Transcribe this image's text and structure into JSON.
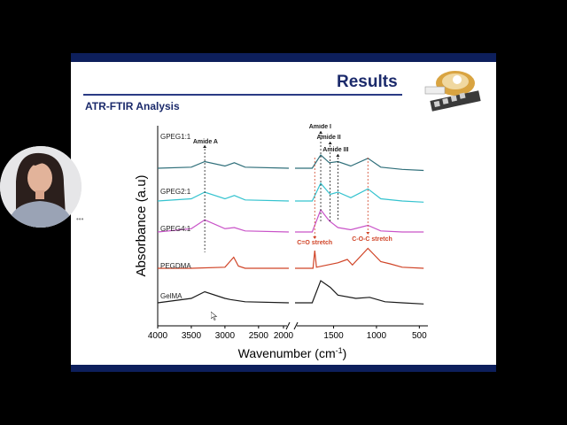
{
  "slide": {
    "title": "Results",
    "subtitle": "ATR-FTIR Analysis"
  },
  "chart_data": {
    "type": "line",
    "title": "",
    "xlabel": "Wavenumber (cm-1)",
    "ylabel": "Absorbance (a.u)",
    "xlim": [
      4000,
      400
    ],
    "x_break": [
      2050,
      1950
    ],
    "x_ticks": [
      "4000",
      "3500",
      "3000",
      "2500",
      "2000",
      "1500",
      "1000",
      "500"
    ],
    "xlabel_main": "Wavenumber (cm",
    "xlabel_sup": "-1",
    "xlabel_close": ")",
    "grid": false,
    "series": [
      {
        "name": "GPEG1:1",
        "color": "#2f6f7a",
        "points": [
          [
            4000,
            0
          ],
          [
            3500,
            1
          ],
          [
            3300,
            6
          ],
          [
            3000,
            2
          ],
          [
            2860,
            5
          ],
          [
            2700,
            1
          ],
          [
            2050,
            0
          ],
          [
            1950,
            0
          ],
          [
            1750,
            0
          ],
          [
            1650,
            12
          ],
          [
            1550,
            5
          ],
          [
            1450,
            6
          ],
          [
            1300,
            2
          ],
          [
            1100,
            9
          ],
          [
            950,
            1
          ],
          [
            700,
            -1
          ],
          [
            450,
            -2
          ]
        ]
      },
      {
        "name": "GPEG2:1",
        "color": "#35c3cf",
        "points": [
          [
            4000,
            0
          ],
          [
            3500,
            2
          ],
          [
            3300,
            8
          ],
          [
            3000,
            2
          ],
          [
            2860,
            5
          ],
          [
            2700,
            1
          ],
          [
            2050,
            0
          ],
          [
            1950,
            0
          ],
          [
            1750,
            0
          ],
          [
            1650,
            16
          ],
          [
            1540,
            6
          ],
          [
            1450,
            8
          ],
          [
            1300,
            3
          ],
          [
            1100,
            11
          ],
          [
            950,
            2
          ],
          [
            700,
            0
          ],
          [
            450,
            -1
          ]
        ]
      },
      {
        "name": "GPEG4:1",
        "color": "#c953c8",
        "points": [
          [
            4000,
            0
          ],
          [
            3500,
            3
          ],
          [
            3300,
            11
          ],
          [
            3000,
            3
          ],
          [
            2860,
            4
          ],
          [
            2700,
            1
          ],
          [
            2050,
            0
          ],
          [
            1950,
            0
          ],
          [
            1750,
            0
          ],
          [
            1650,
            20
          ],
          [
            1550,
            10
          ],
          [
            1450,
            4
          ],
          [
            1300,
            2
          ],
          [
            1100,
            6
          ],
          [
            950,
            1
          ],
          [
            700,
            0
          ],
          [
            450,
            0
          ]
        ]
      },
      {
        "name": "PEGDMA",
        "color": "#d04427",
        "points": [
          [
            4000,
            0
          ],
          [
            3500,
            0
          ],
          [
            3000,
            1
          ],
          [
            2870,
            10
          ],
          [
            2800,
            2
          ],
          [
            2700,
            0
          ],
          [
            2050,
            0
          ],
          [
            1950,
            0
          ],
          [
            1740,
            0
          ],
          [
            1720,
            16
          ],
          [
            1700,
            1
          ],
          [
            1450,
            5
          ],
          [
            1340,
            8
          ],
          [
            1280,
            3
          ],
          [
            1100,
            18
          ],
          [
            950,
            6
          ],
          [
            840,
            4
          ],
          [
            700,
            1
          ],
          [
            450,
            0
          ]
        ]
      },
      {
        "name": "GelMA",
        "color": "#1a1a1a",
        "points": [
          [
            4000,
            0
          ],
          [
            3500,
            4
          ],
          [
            3300,
            10
          ],
          [
            3000,
            4
          ],
          [
            2920,
            3
          ],
          [
            2700,
            1
          ],
          [
            2050,
            0
          ],
          [
            1950,
            0
          ],
          [
            1750,
            0
          ],
          [
            1650,
            20
          ],
          [
            1540,
            14
          ],
          [
            1450,
            7
          ],
          [
            1240,
            4
          ],
          [
            1080,
            5
          ],
          [
            900,
            1
          ],
          [
            700,
            0
          ],
          [
            450,
            -1
          ]
        ]
      }
    ],
    "annotations": [
      {
        "text": "Amide A",
        "x": 3300,
        "color": "#1a1a1a"
      },
      {
        "text": "Amide I",
        "x": 1650,
        "color": "#1a1a1a"
      },
      {
        "text": "Amide II",
        "x": 1540,
        "color": "#1a1a1a"
      },
      {
        "text": "Amide III",
        "x": 1450,
        "color": "#1a1a1a"
      },
      {
        "text": "C=O stretch",
        "x": 1720,
        "color": "#d04427"
      },
      {
        "text": "C-O-C stretch",
        "x": 1100,
        "color": "#d04427"
      }
    ]
  },
  "colors": {
    "accent_navy": "#0d1f5c",
    "title_color": "#1b2a6b"
  }
}
